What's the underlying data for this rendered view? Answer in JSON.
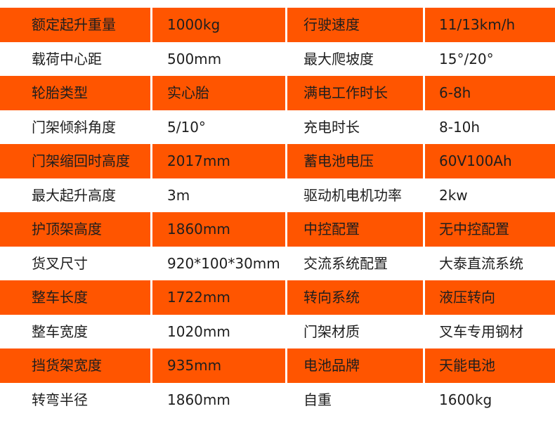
{
  "colors": {
    "highlight_row": "#FF5500",
    "text": "#1e1e1e"
  },
  "rows": [
    [
      "额定起升重量",
      "1000kg",
      "行驶速度",
      "11/13km/h"
    ],
    [
      "载荷中心距",
      "500mm",
      "最大爬坡度",
      "15°/20°"
    ],
    [
      "轮胎类型",
      "实心胎",
      "满电工作时长",
      "6-8h"
    ],
    [
      "门架倾斜角度",
      "5/10°",
      "充电时长",
      "8-10h"
    ],
    [
      "门架缩回时高度",
      "2017mm",
      "蓄电池电压",
      "60V100Ah"
    ],
    [
      "最大起升高度",
      "3m",
      "驱动机电机功率",
      "2kw"
    ],
    [
      "护顶架高度",
      "1860mm",
      "中控配置",
      "无中控配置"
    ],
    [
      "货叉尺寸",
      "920*100*30mm",
      "交流系统配置",
      "大泰直流系统"
    ],
    [
      "整车长度",
      "1722mm",
      "转向系统",
      "液压转向"
    ],
    [
      "整车宽度",
      "1020mm",
      "门架材质",
      "叉车专用钢材"
    ],
    [
      "挡货架宽度",
      "935mm",
      "电池品牌",
      "天能电池"
    ],
    [
      "转弯半径",
      "1860mm",
      "自重",
      "1600kg"
    ]
  ]
}
